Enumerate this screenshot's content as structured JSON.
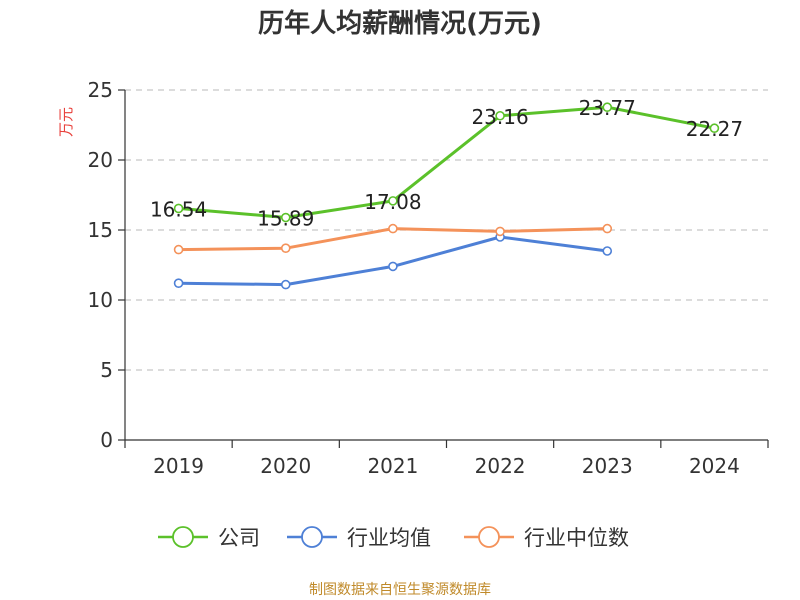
{
  "chart_data": {
    "type": "line",
    "title": "历年人均薪酬情况(万元)",
    "ylabel": "万元",
    "xlabel": "",
    "categories": [
      "2019",
      "2020",
      "2021",
      "2022",
      "2023",
      "2024"
    ],
    "ylim": [
      0,
      25
    ],
    "yticks": [
      0,
      5,
      10,
      15,
      20,
      25
    ],
    "grid": true,
    "legend_position": "bottom",
    "series": [
      {
        "name": "公司",
        "color": "#5bc12a",
        "values": [
          16.54,
          15.89,
          17.08,
          23.16,
          23.77,
          22.27
        ],
        "labels": [
          "16.54",
          "15.89",
          "17.08",
          "23.16",
          "23.77",
          "22.27"
        ]
      },
      {
        "name": "行业均值",
        "color": "#4e80d6",
        "values": [
          11.2,
          11.1,
          12.4,
          14.5,
          13.5,
          null
        ]
      },
      {
        "name": "行业中位数",
        "color": "#f4925a",
        "values": [
          13.6,
          13.7,
          15.1,
          14.9,
          15.1,
          null
        ]
      }
    ]
  },
  "source_text": "制图数据来自恒生聚源数据库"
}
